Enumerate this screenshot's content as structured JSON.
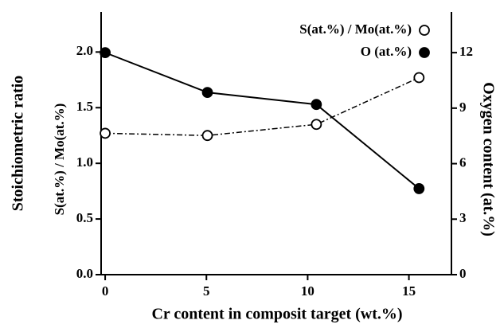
{
  "chart_data": {
    "type": "line",
    "xlabel": "Cr content in composit target (wt.%)",
    "ylabel": "Stoichiometric ratio",
    "ylabel_inner": "S(at.%) / Mo(at.%)",
    "y2label": "Oxygen content (at.%)",
    "x": [
      0,
      5.05,
      10.43,
      15.5
    ],
    "series": [
      {
        "name": "S(at.%) / Mo(at.%)",
        "color": "#000000",
        "marker": "open",
        "dash": "dashdot",
        "values": [
          1.27,
          1.25,
          1.35,
          1.77
        ]
      },
      {
        "name": "O (at.%)",
        "color": "#000000",
        "marker": "filled",
        "dash": "solid",
        "axis": "y2",
        "values": [
          12.0,
          9.85,
          9.2,
          4.65
        ]
      }
    ],
    "xlim": [
      -0.2,
      17.1
    ],
    "xticks": [
      0,
      5,
      10,
      15
    ],
    "ylim": [
      0,
      2.36
    ],
    "yticks": [
      {
        "value": 0,
        "label": "0.0"
      },
      0.5,
      {
        "value": 1,
        "label": "1.0"
      },
      1.5,
      {
        "value": 2,
        "label": "2.0"
      }
    ],
    "y2lim": [
      0,
      14.2
    ],
    "y2ticks": [
      0,
      3,
      6,
      9,
      12
    ],
    "legend": "top-right",
    "grid": false
  }
}
